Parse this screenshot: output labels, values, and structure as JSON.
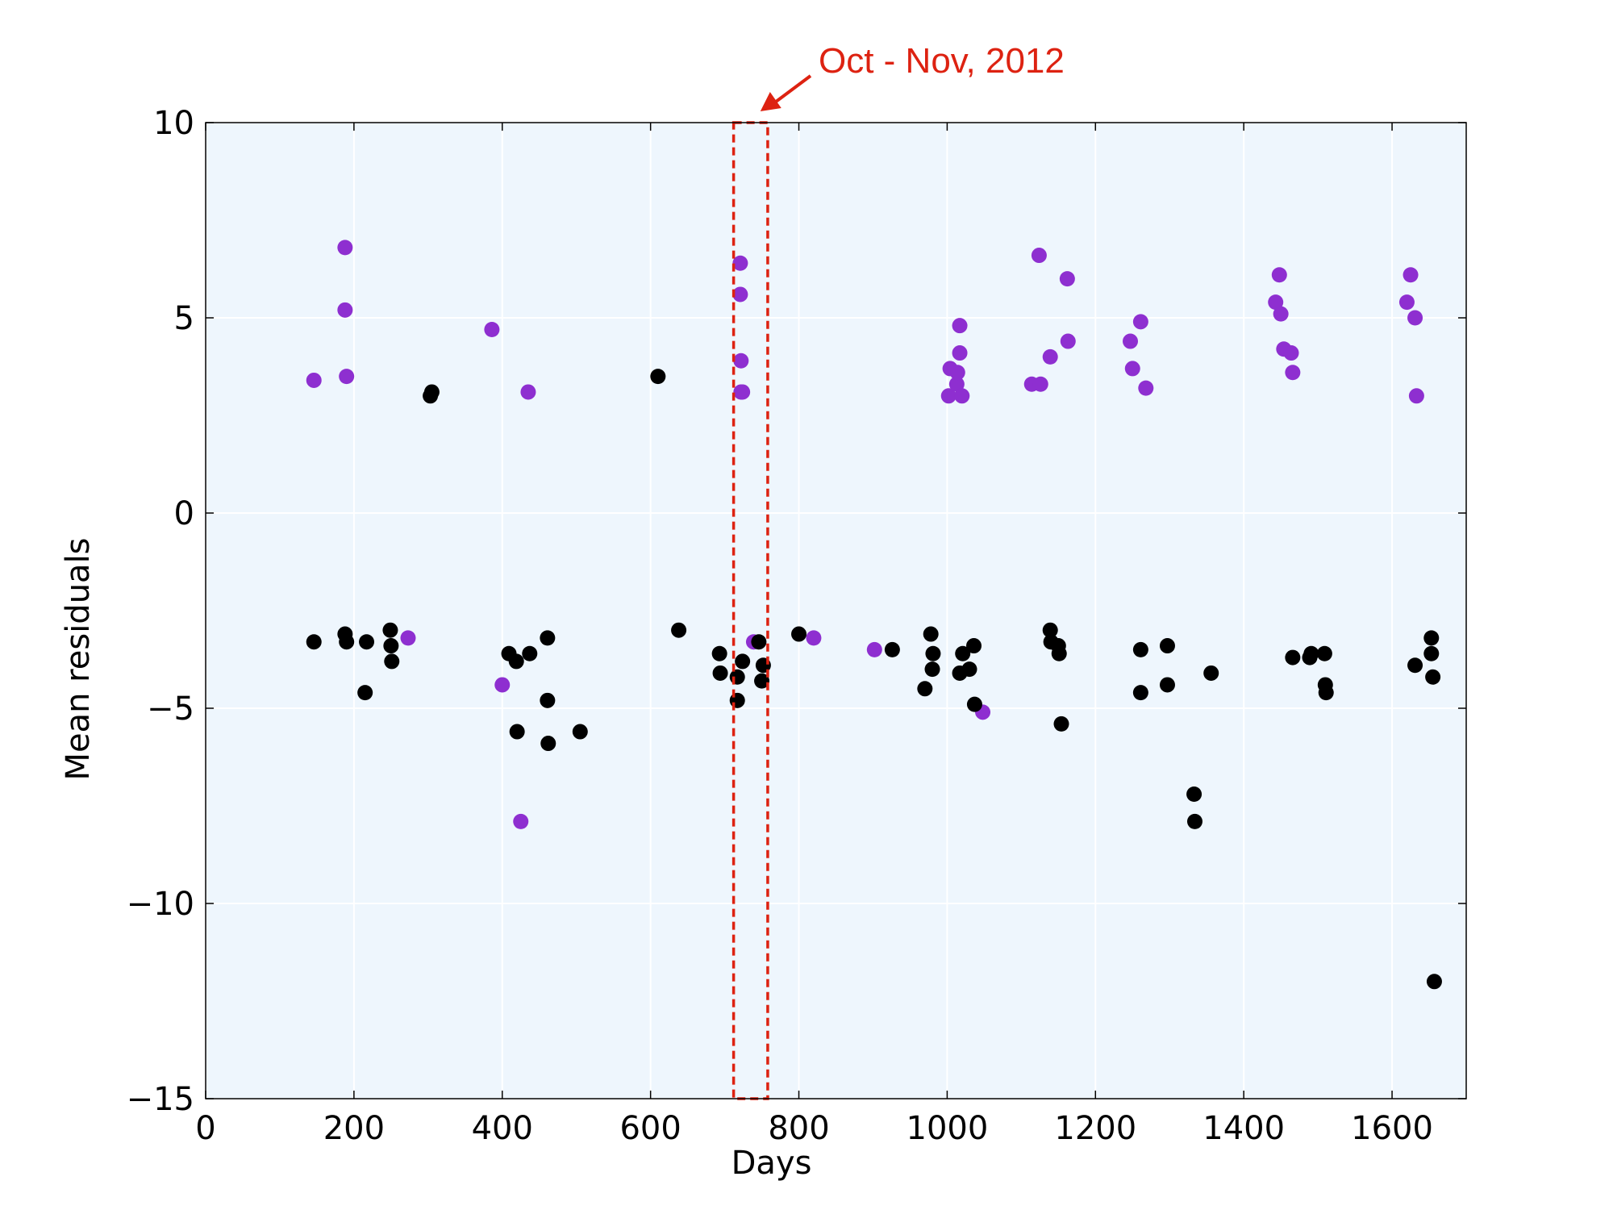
{
  "chart_data": {
    "type": "scatter",
    "title": "",
    "xlabel": "Days",
    "ylabel": "Mean residuals",
    "xlim": [
      0,
      1700
    ],
    "ylim": [
      -15,
      10
    ],
    "xticks": [
      0,
      200,
      400,
      600,
      800,
      1000,
      1200,
      1400,
      1600
    ],
    "yticks": [
      10,
      5,
      0,
      -5,
      -10,
      -15
    ],
    "ytick_labels": [
      "10",
      "5",
      "0",
      "−5",
      "−10",
      "−15"
    ],
    "grid": true,
    "background_color": "#eef6fd",
    "annotation": {
      "text": "Oct - Nov, 2012",
      "color": "#dd2211",
      "box_x_range": [
        712,
        758
      ],
      "box_y_range": [
        -15,
        10
      ]
    },
    "series": [
      {
        "color": "#8e2fd0",
        "points": [
          [
            146,
            3.4
          ],
          [
            188,
            6.8
          ],
          [
            188,
            5.2
          ],
          [
            190,
            3.5
          ],
          [
            273,
            -3.2
          ],
          [
            386,
            4.7
          ],
          [
            400,
            -4.4
          ],
          [
            425,
            -7.9
          ],
          [
            435,
            3.1
          ],
          [
            721,
            6.4
          ],
          [
            721,
            5.6
          ],
          [
            722,
            3.9
          ],
          [
            722,
            3.1
          ],
          [
            724,
            3.1
          ],
          [
            739,
            -3.3
          ],
          [
            820,
            -3.2
          ],
          [
            902,
            -3.5
          ],
          [
            1002,
            3.0
          ],
          [
            1004,
            3.7
          ],
          [
            1013,
            3.3
          ],
          [
            1014,
            3.6
          ],
          [
            1017,
            4.1
          ],
          [
            1017,
            4.8
          ],
          [
            1020,
            3.0
          ],
          [
            1048,
            -5.1
          ],
          [
            1114,
            3.3
          ],
          [
            1124,
            6.6
          ],
          [
            1126,
            3.3
          ],
          [
            1139,
            4.0
          ],
          [
            1162,
            6.0
          ],
          [
            1163,
            4.4
          ],
          [
            1247,
            4.4
          ],
          [
            1250,
            3.7
          ],
          [
            1261,
            4.9
          ],
          [
            1268,
            3.2
          ],
          [
            1443,
            5.4
          ],
          [
            1448,
            6.1
          ],
          [
            1450,
            5.1
          ],
          [
            1454,
            4.2
          ],
          [
            1464,
            4.1
          ],
          [
            1466,
            3.6
          ],
          [
            1620,
            5.4
          ],
          [
            1625,
            6.1
          ],
          [
            1631,
            5.0
          ],
          [
            1633,
            3.0
          ]
        ]
      },
      {
        "color": "#000000",
        "points": [
          [
            146,
            -3.3
          ],
          [
            188,
            -3.1
          ],
          [
            190,
            -3.3
          ],
          [
            217,
            -3.3
          ],
          [
            215,
            -4.6
          ],
          [
            249,
            -3.0
          ],
          [
            250,
            -3.4
          ],
          [
            251,
            -3.8
          ],
          [
            303,
            3.0
          ],
          [
            305,
            3.1
          ],
          [
            409,
            -3.6
          ],
          [
            419,
            -3.8
          ],
          [
            420,
            -5.6
          ],
          [
            437,
            -3.6
          ],
          [
            461,
            -3.2
          ],
          [
            461,
            -4.8
          ],
          [
            462,
            -5.9
          ],
          [
            505,
            -5.6
          ],
          [
            610,
            3.5
          ],
          [
            638,
            -3.0
          ],
          [
            693,
            -3.6
          ],
          [
            694,
            -4.1
          ],
          [
            717,
            -4.2
          ],
          [
            717,
            -4.8
          ],
          [
            724,
            -3.8
          ],
          [
            746,
            -3.3
          ],
          [
            750,
            -4.3
          ],
          [
            752,
            -3.9
          ],
          [
            800,
            -3.1
          ],
          [
            926,
            -3.5
          ],
          [
            970,
            -4.5
          ],
          [
            978,
            -3.1
          ],
          [
            980,
            -4.0
          ],
          [
            981,
            -3.6
          ],
          [
            1017,
            -4.1
          ],
          [
            1021,
            -3.6
          ],
          [
            1030,
            -4.0
          ],
          [
            1036,
            -3.4
          ],
          [
            1037,
            -4.9
          ],
          [
            1139,
            -3.0
          ],
          [
            1140,
            -3.3
          ],
          [
            1150,
            -3.4
          ],
          [
            1151,
            -3.6
          ],
          [
            1154,
            -5.4
          ],
          [
            1261,
            -3.5
          ],
          [
            1261,
            -4.6
          ],
          [
            1297,
            -3.4
          ],
          [
            1297,
            -4.4
          ],
          [
            1333,
            -7.2
          ],
          [
            1334,
            -7.9
          ],
          [
            1356,
            -4.1
          ],
          [
            1466,
            -3.7
          ],
          [
            1489,
            -3.7
          ],
          [
            1491,
            -3.6
          ],
          [
            1509,
            -3.6
          ],
          [
            1510,
            -4.4
          ],
          [
            1511,
            -4.6
          ],
          [
            1631,
            -3.9
          ],
          [
            1653,
            -3.2
          ],
          [
            1653,
            -3.6
          ],
          [
            1655,
            -4.2
          ],
          [
            1657,
            -12.0
          ]
        ]
      }
    ]
  }
}
